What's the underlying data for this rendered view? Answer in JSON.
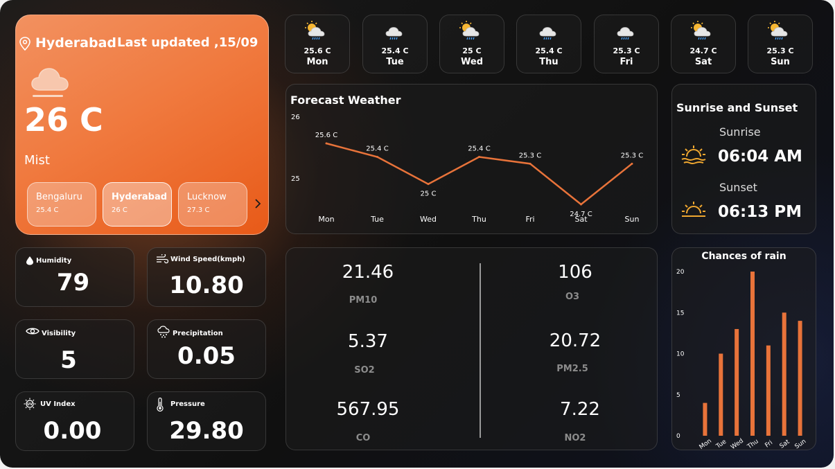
{
  "current": {
    "city": "Hyderabad",
    "last_updated": "Last updated ,15/09",
    "temperature": "26 C",
    "condition": "Mist",
    "icon": "cloud-icon"
  },
  "cities": [
    {
      "name": "Bengaluru",
      "temp": "25.4 C"
    },
    {
      "name": "Hyderabad",
      "temp": "26 C"
    },
    {
      "name": "Lucknow",
      "temp": "27.3 C"
    }
  ],
  "days": [
    {
      "temp": "25.6 C",
      "day": "Mon",
      "icon": "partly-cloudy-rain-icon"
    },
    {
      "temp": "25.4 C",
      "day": "Tue",
      "icon": "cloud-rain-icon"
    },
    {
      "temp": "25 C",
      "day": "Wed",
      "icon": "partly-cloudy-rain-icon"
    },
    {
      "temp": "25.4 C",
      "day": "Thu",
      "icon": "cloud-rain-icon"
    },
    {
      "temp": "25.3 C",
      "day": "Fri",
      "icon": "cloud-rain-icon"
    },
    {
      "temp": "24.7 C",
      "day": "Sat",
      "icon": "partly-cloudy-rain-icon"
    },
    {
      "temp": "25.3 C",
      "day": "Sun",
      "icon": "partly-cloudy-rain-icon"
    }
  ],
  "sun": {
    "title": "Sunrise and Sunset",
    "sunrise_label": "Sunrise",
    "sunrise_time": "06:04 AM",
    "sunset_label": "Sunset",
    "sunset_time": "06:13 PM"
  },
  "metrics": {
    "humidity": {
      "label": "Humidity",
      "value": "79"
    },
    "wind": {
      "label": "Wind Speed(kmph)",
      "value": "10.80"
    },
    "visibility": {
      "label": "Visibility",
      "value": "5"
    },
    "precipitation": {
      "label": "Precipitation",
      "value": "0.05"
    },
    "uv": {
      "label": "UV Index",
      "value": "0.00"
    },
    "pressure": {
      "label": "Pressure",
      "value": "29.80"
    }
  },
  "air": {
    "pm10": {
      "value": "21.46",
      "label": "PM10"
    },
    "o3": {
      "value": "106",
      "label": "O3"
    },
    "so2": {
      "value": "5.37",
      "label": "SO2"
    },
    "pm25": {
      "value": "20.72",
      "label": "PM2.5"
    },
    "co": {
      "value": "567.95",
      "label": "CO"
    },
    "no2": {
      "value": "7.22",
      "label": "NO2"
    }
  },
  "colors": {
    "accent": "#e8733a",
    "card_orange": "#f07a3f"
  },
  "chart_data": [
    {
      "type": "line",
      "title": "Forecast Weather",
      "categories": [
        "Mon",
        "Tue",
        "Wed",
        "Thu",
        "Fri",
        "Sat",
        "Sun"
      ],
      "values": [
        25.6,
        25.4,
        25.0,
        25.4,
        25.3,
        24.7,
        25.3
      ],
      "data_labels": [
        "25.6 C",
        "25.4 C",
        "25 C",
        "25.4 C",
        "25.3 C",
        "24.7 C",
        "25.3 C"
      ],
      "yticks": [
        "26",
        "25"
      ],
      "ylim": [
        24.7,
        26
      ],
      "grid": false,
      "color": "#e8733a"
    },
    {
      "type": "bar",
      "title": "Chances of rain",
      "categories": [
        "Mon",
        "Tue",
        "Wed",
        "Thu",
        "Fri",
        "Sat",
        "Sun"
      ],
      "values": [
        4,
        10,
        13,
        20,
        11,
        15,
        14
      ],
      "yticks": [
        "0",
        "5",
        "10",
        "15",
        "20"
      ],
      "ylim": [
        0,
        20
      ],
      "grid": false,
      "color": "#e8733a"
    }
  ]
}
